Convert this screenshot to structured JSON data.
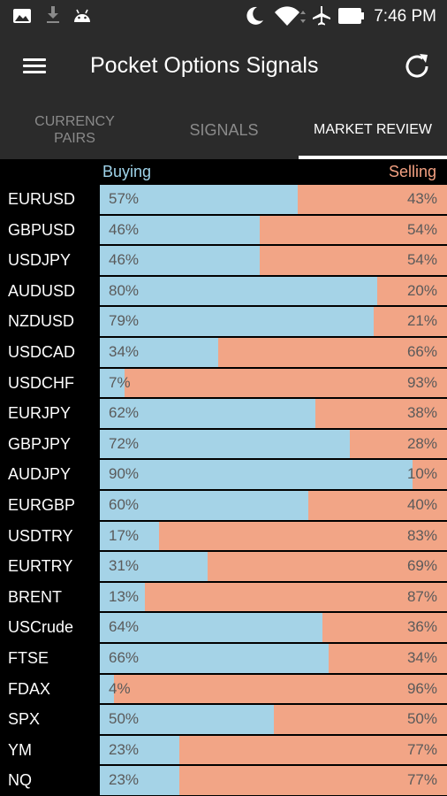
{
  "status_bar": {
    "time": "7:46 PM",
    "icons": [
      "image-icon",
      "download-icon",
      "android-icon",
      "moon-icon",
      "wifi-icon",
      "airplane-icon",
      "battery-icon"
    ]
  },
  "app_bar": {
    "title": "Pocket Options Signals",
    "icons": [
      "menu-icon",
      "refresh-icon"
    ]
  },
  "tabs": [
    {
      "label_line1": "CURRENCY",
      "label_line2": "PAIRS",
      "active": false
    },
    {
      "label": "SIGNALS",
      "active": false
    },
    {
      "label": "MARKET REVIEW",
      "active": true
    }
  ],
  "market": {
    "buying_label": "Buying",
    "selling_label": "Selling",
    "colors": {
      "buying": "#a5d3e7",
      "selling": "#f2a586"
    },
    "rows": [
      {
        "pair": "EURUSD",
        "buy": 57,
        "sell": 43,
        "buy_label": "57%",
        "sell_label": "43%"
      },
      {
        "pair": "GBPUSD",
        "buy": 46,
        "sell": 54,
        "buy_label": "46%",
        "sell_label": "54%"
      },
      {
        "pair": "USDJPY",
        "buy": 46,
        "sell": 54,
        "buy_label": "46%",
        "sell_label": "54%"
      },
      {
        "pair": "AUDUSD",
        "buy": 80,
        "sell": 20,
        "buy_label": "80%",
        "sell_label": "20%"
      },
      {
        "pair": "NZDUSD",
        "buy": 79,
        "sell": 21,
        "buy_label": "79%",
        "sell_label": "21%"
      },
      {
        "pair": "USDCAD",
        "buy": 34,
        "sell": 66,
        "buy_label": "34%",
        "sell_label": "66%"
      },
      {
        "pair": "USDCHF",
        "buy": 7,
        "sell": 93,
        "buy_label": "7%",
        "sell_label": "93%"
      },
      {
        "pair": "EURJPY",
        "buy": 62,
        "sell": 38,
        "buy_label": "62%",
        "sell_label": "38%"
      },
      {
        "pair": "GBPJPY",
        "buy": 72,
        "sell": 28,
        "buy_label": "72%",
        "sell_label": "28%"
      },
      {
        "pair": "AUDJPY",
        "buy": 90,
        "sell": 10,
        "buy_label": "90%",
        "sell_label": "10%"
      },
      {
        "pair": "EURGBP",
        "buy": 60,
        "sell": 40,
        "buy_label": "60%",
        "sell_label": "40%"
      },
      {
        "pair": "USDTRY",
        "buy": 17,
        "sell": 83,
        "buy_label": "17%",
        "sell_label": "83%"
      },
      {
        "pair": "EURTRY",
        "buy": 31,
        "sell": 69,
        "buy_label": "31%",
        "sell_label": "69%"
      },
      {
        "pair": "BRENT",
        "buy": 13,
        "sell": 87,
        "buy_label": "13%",
        "sell_label": "87%"
      },
      {
        "pair": "USCrude",
        "buy": 64,
        "sell": 36,
        "buy_label": "64%",
        "sell_label": "36%"
      },
      {
        "pair": "FTSE",
        "buy": 66,
        "sell": 34,
        "buy_label": "66%",
        "sell_label": "34%"
      },
      {
        "pair": "FDAX",
        "buy": 4,
        "sell": 96,
        "buy_label": "4%",
        "sell_label": "96%"
      },
      {
        "pair": "SPX",
        "buy": 50,
        "sell": 50,
        "buy_label": "50%",
        "sell_label": "50%"
      },
      {
        "pair": "YM",
        "buy": 23,
        "sell": 77,
        "buy_label": "23%",
        "sell_label": "77%"
      },
      {
        "pair": "NQ",
        "buy": 23,
        "sell": 77,
        "buy_label": "23%",
        "sell_label": "77%"
      }
    ]
  }
}
